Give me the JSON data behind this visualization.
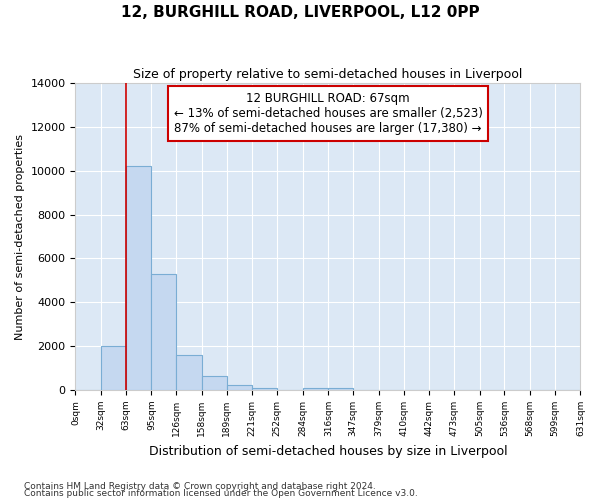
{
  "title": "12, BURGHILL ROAD, LIVERPOOL, L12 0PP",
  "subtitle": "Size of property relative to semi-detached houses in Liverpool",
  "xlabel": "Distribution of semi-detached houses by size in Liverpool",
  "ylabel": "Number of semi-detached properties",
  "footnote1": "Contains HM Land Registry data © Crown copyright and database right 2024.",
  "footnote2": "Contains public sector information licensed under the Open Government Licence v3.0.",
  "annotation_line1": "12 BURGHILL ROAD: 67sqm",
  "annotation_line2": "← 13% of semi-detached houses are smaller (2,523)",
  "annotation_line3": "87% of semi-detached houses are larger (17,380) →",
  "bar_edges": [
    0,
    32,
    63,
    95,
    126,
    158,
    189,
    221,
    252,
    284,
    316,
    347,
    379,
    410,
    442,
    473,
    505,
    536,
    568,
    599,
    631
  ],
  "bar_heights": [
    0,
    2000,
    10200,
    5300,
    1600,
    650,
    250,
    100,
    0,
    100,
    100,
    0,
    0,
    0,
    0,
    0,
    0,
    0,
    0,
    0
  ],
  "bar_color": "#c5d8f0",
  "bar_edge_color": "#7aadd4",
  "marker_x": 63,
  "marker_color": "#cc0000",
  "ylim": [
    0,
    14000
  ],
  "xlim": [
    0,
    631
  ],
  "annotation_box_color": "#ffffff",
  "annotation_box_edge": "#cc0000",
  "background_color": "#dce8f5",
  "grid_color": "#ffffff",
  "fig_background": "#ffffff"
}
